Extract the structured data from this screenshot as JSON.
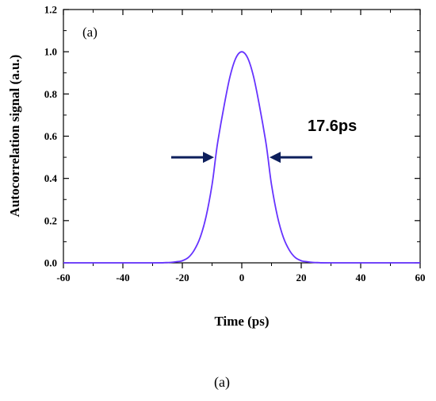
{
  "chart_data": {
    "type": "line",
    "title": "",
    "panel_label": "(a)",
    "caption": "(a)",
    "xlabel": "Time (ps)",
    "ylabel": "Autocorrelation signal (a.u.)",
    "xlim": [
      -60,
      60
    ],
    "ylim": [
      0,
      1.2
    ],
    "xticks": [
      -60,
      -40,
      -20,
      0,
      20,
      40,
      60
    ],
    "yticks": [
      "0.0",
      "0.2",
      "0.4",
      "0.6",
      "0.8",
      "1.0",
      "1.2"
    ],
    "grid": false,
    "line_color": "#6633ff",
    "arrow_color": "#0d1f5c",
    "series": [
      {
        "x": [
          -60,
          -30,
          -26,
          -24,
          -22,
          -20,
          -18,
          -16,
          -14,
          -12,
          -10,
          -8.8,
          -8,
          -6,
          -4,
          -2,
          0,
          2,
          4,
          6,
          8,
          8.8,
          10,
          12,
          14,
          16,
          18,
          20,
          22,
          24,
          26,
          30,
          60
        ],
        "values": [
          0,
          0,
          0.001,
          0.002,
          0.005,
          0.01,
          0.025,
          0.06,
          0.12,
          0.22,
          0.37,
          0.5,
          0.58,
          0.74,
          0.88,
          0.97,
          1.0,
          0.97,
          0.88,
          0.74,
          0.58,
          0.5,
          0.37,
          0.22,
          0.12,
          0.06,
          0.025,
          0.01,
          0.005,
          0.002,
          0.001,
          0,
          0
        ]
      }
    ],
    "annotations": [
      {
        "text": "17.6ps",
        "x": 8.8,
        "y": 0.5,
        "from_x": -8.8,
        "to_x": 8.8
      }
    ]
  }
}
